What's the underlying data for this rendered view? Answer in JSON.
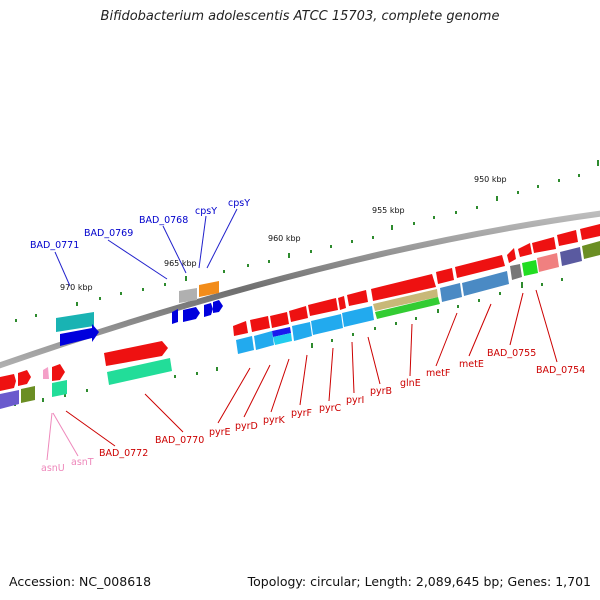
{
  "title": "Bifidobacterium adolescentis ATCC 15703, complete genome",
  "footer": {
    "accession": "Accession: NC_008618",
    "info": "Topology: circular; Length: 2,089,645 bp; Genes: 1,701"
  },
  "kbp_labels": [
    "970 kbp",
    "965 kbp",
    "960 kbp",
    "955 kbp",
    "950 kbp"
  ],
  "genes_top": [
    "BAD_0771",
    "BAD_0769",
    "BAD_0768",
    "cpsY",
    "cpsY"
  ],
  "genes_bottom": [
    "BAD_0772",
    "BAD_0770",
    "pyrE",
    "pyrD",
    "pyrK",
    "pyrF",
    "pyrC",
    "pyrI",
    "pyrB",
    "glnE",
    "metF",
    "metE",
    "BAD_0755",
    "BAD_0754"
  ],
  "genes_pink": [
    "asnU",
    "asnT"
  ],
  "colors": {
    "backbone": "#7a7a7a",
    "tick": "#2e8b2e",
    "top_label": "#0000cc",
    "bottom_label": "#cc0000",
    "trna_label": "#ee88bb"
  }
}
